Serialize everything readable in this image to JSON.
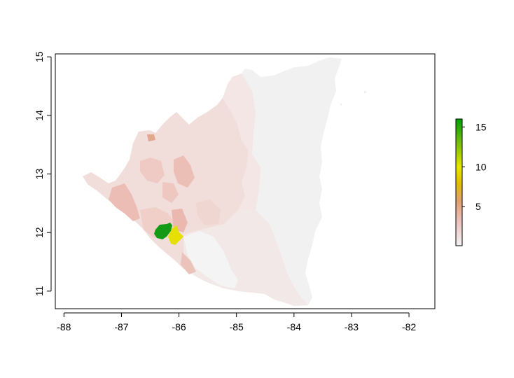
{
  "map": {
    "x_ticks": [
      "-88",
      "-87",
      "-86",
      "-85",
      "-84",
      "-83",
      "-82"
    ],
    "y_ticks": [
      "11",
      "12",
      "13",
      "14",
      "15"
    ],
    "x_range": [
      -88.15,
      -81.55
    ],
    "y_range": [
      10.7,
      15.05
    ],
    "colors": {
      "background_land": "#f1f1f1",
      "low": "#f2e2e0",
      "mid": "#e9b3a8",
      "high_orange": "#e0a060",
      "yellow": "#e6e600",
      "green": "#149a14"
    }
  },
  "legend": {
    "ticks": [
      "5",
      "10",
      "15"
    ],
    "tick_values": [
      5,
      10,
      15
    ],
    "range": [
      0.1,
      16
    ],
    "gradient": [
      "#f2f2f2",
      "#ebc0bb",
      "#e2a070",
      "#e0c000",
      "#e6e600",
      "#7cc00a",
      "#00a000"
    ]
  }
}
